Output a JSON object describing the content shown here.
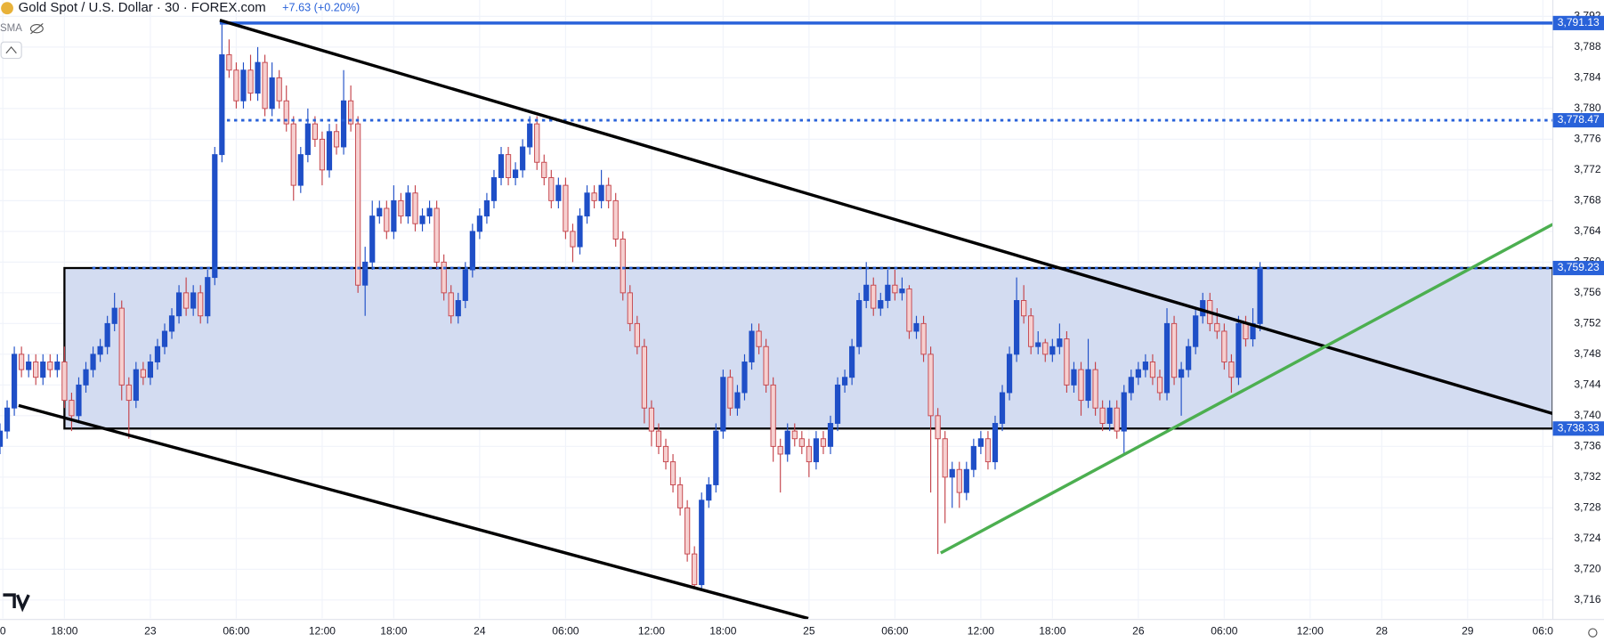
{
  "chart_data": {
    "type": "candlestick",
    "title": "Gold Spot / U.S. Dollar · 30 · FOREX.com",
    "change": "+7.63 (+0.20%)",
    "indicator": "SMA",
    "up_color": "#1f4fc7",
    "down_color": "#c4434a",
    "down_fill": "#f6d0d0",
    "xlim": [
      0,
      216.9
    ],
    "ylim": [
      3713.6,
      3794.13
    ],
    "xticks": [
      {
        "value": 0.4,
        "label": "0"
      },
      {
        "value": 9,
        "label": "18:00"
      },
      {
        "value": 21,
        "label": "23"
      },
      {
        "value": 33,
        "label": "06:00"
      },
      {
        "value": 45,
        "label": "12:00"
      },
      {
        "value": 55,
        "label": "18:00"
      },
      {
        "value": 67,
        "label": "24"
      },
      {
        "value": 79,
        "label": "06:00"
      },
      {
        "value": 91,
        "label": "12:00"
      },
      {
        "value": 101,
        "label": "18:00"
      },
      {
        "value": 113,
        "label": "25"
      },
      {
        "value": 125,
        "label": "06:00"
      },
      {
        "value": 137,
        "label": "12:00"
      },
      {
        "value": 147,
        "label": "18:00"
      },
      {
        "value": 159,
        "label": "26"
      },
      {
        "value": 171,
        "label": "06:00"
      },
      {
        "value": 183,
        "label": "12:00"
      },
      {
        "value": 193,
        "label": "28"
      },
      {
        "value": 205,
        "label": "29"
      },
      {
        "value": 215.5,
        "label": "06:0"
      }
    ],
    "yticks": [
      {
        "value": 3716,
        "label": "3,716"
      },
      {
        "value": 3720,
        "label": "3,720"
      },
      {
        "value": 3724,
        "label": "3,724"
      },
      {
        "value": 3728,
        "label": "3,728"
      },
      {
        "value": 3732,
        "label": "3,732"
      },
      {
        "value": 3736,
        "label": "3,736"
      },
      {
        "value": 3740,
        "label": "3,740"
      },
      {
        "value": 3744,
        "label": "3,744"
      },
      {
        "value": 3748,
        "label": "3,748"
      },
      {
        "value": 3752,
        "label": "3,752"
      },
      {
        "value": 3756,
        "label": "3,756"
      },
      {
        "value": 3760,
        "label": "3,760"
      },
      {
        "value": 3764,
        "label": "3,764"
      },
      {
        "value": 3768,
        "label": "3,768"
      },
      {
        "value": 3772,
        "label": "3,772"
      },
      {
        "value": 3776,
        "label": "3,776"
      },
      {
        "value": 3780,
        "label": "3,780"
      },
      {
        "value": 3784,
        "label": "3,784"
      },
      {
        "value": 3788,
        "label": "3,788"
      },
      {
        "value": 3792,
        "label": "3,792"
      }
    ],
    "levels": [
      {
        "value": 3791.13,
        "label": "3,791.13",
        "line": "solid",
        "start": 30.7,
        "color": "#2962d9"
      },
      {
        "value": 3778.47,
        "label": "3,778.47",
        "line": "dotted",
        "start": 31.7,
        "color": "#2962d9"
      },
      {
        "value": 3759.23,
        "label": "3,759.23",
        "line": "dotted",
        "start": 12.9,
        "color": "#2962d9"
      },
      {
        "value": 3738.33,
        "label": "3,738.33",
        "line": "none",
        "start": 9,
        "color": "#2962d9"
      }
    ],
    "box": {
      "start": 9,
      "fill": "#d3dcf1",
      "stroke": "#000000"
    },
    "trendlines": [
      {
        "color": "#000000",
        "points": [
          [
            30.7,
            3791.5
          ],
          [
            216.9,
            3740.27
          ]
        ]
      },
      {
        "color": "#000000",
        "points": [
          [
            2.6,
            3741.33
          ],
          [
            112.9,
            3713.6
          ]
        ]
      },
      {
        "color": "#4caf50",
        "points": [
          [
            131.4,
            3722.13
          ],
          [
            216.9,
            3764.93
          ]
        ]
      }
    ],
    "candles": [
      [
        3736,
        3739,
        3735,
        3738
      ],
      [
        3738,
        3742,
        3737,
        3741
      ],
      [
        3741,
        3749,
        3740,
        3748
      ],
      [
        3748,
        3749,
        3745,
        3746
      ],
      [
        3746,
        3748,
        3745,
        3747
      ],
      [
        3747,
        3748,
        3744,
        3745
      ],
      [
        3745,
        3748,
        3744,
        3747
      ],
      [
        3747,
        3748,
        3745,
        3746
      ],
      [
        3746,
        3748,
        3745,
        3747
      ],
      [
        3747,
        3749,
        3741,
        3742
      ],
      [
        3742,
        3743,
        3738,
        3740
      ],
      [
        3740,
        3745,
        3739,
        3744
      ],
      [
        3744,
        3747,
        3743,
        3746
      ],
      [
        3746,
        3749,
        3745,
        3748
      ],
      [
        3748,
        3750,
        3747,
        3749
      ],
      [
        3749,
        3753,
        3748,
        3752
      ],
      [
        3752,
        3756,
        3751,
        3754
      ],
      [
        3754,
        3755,
        3742,
        3744
      ],
      [
        3744,
        3745,
        3737,
        3742
      ],
      [
        3742,
        3747,
        3741,
        3746
      ],
      [
        3746,
        3747,
        3744,
        3745
      ],
      [
        3745,
        3748,
        3744,
        3747
      ],
      [
        3747,
        3750,
        3746,
        3749
      ],
      [
        3749,
        3752,
        3748,
        3751
      ],
      [
        3751,
        3754,
        3750,
        3753
      ],
      [
        3753,
        3757,
        3752,
        3756
      ],
      [
        3756,
        3758,
        3753,
        3754
      ],
      [
        3754,
        3757,
        3753,
        3756
      ],
      [
        3756,
        3757,
        3752,
        3753
      ],
      [
        3753,
        3759,
        3752,
        3758
      ],
      [
        3758,
        3775,
        3757,
        3774
      ],
      [
        3774,
        3791.13,
        3773,
        3787
      ],
      [
        3787,
        3789,
        3784,
        3785
      ],
      [
        3785,
        3786,
        3780,
        3781
      ],
      [
        3781,
        3786,
        3780,
        3785
      ],
      [
        3785,
        3787,
        3781,
        3782
      ],
      [
        3782,
        3788,
        3781,
        3786
      ],
      [
        3786,
        3787,
        3779,
        3780
      ],
      [
        3780,
        3786,
        3779,
        3784
      ],
      [
        3784,
        3785,
        3780,
        3781
      ],
      [
        3781,
        3783,
        3777,
        3778
      ],
      [
        3778,
        3779,
        3768,
        3770
      ],
      [
        3770,
        3775,
        3769,
        3774
      ],
      [
        3774,
        3780,
        3773,
        3778
      ],
      [
        3778,
        3779,
        3775,
        3776
      ],
      [
        3776,
        3777,
        3770,
        3772
      ],
      [
        3772,
        3778,
        3771,
        3777
      ],
      [
        3777,
        3778,
        3774,
        3775
      ],
      [
        3775,
        3785,
        3774,
        3781
      ],
      [
        3781,
        3783,
        3777,
        3778
      ],
      [
        3778,
        3779,
        3756,
        3757
      ],
      [
        3757,
        3762,
        3753,
        3760
      ],
      [
        3760,
        3768,
        3759,
        3766
      ],
      [
        3766,
        3768,
        3765,
        3767
      ],
      [
        3767,
        3768,
        3763,
        3764
      ],
      [
        3764,
        3770,
        3763,
        3768
      ],
      [
        3768,
        3769,
        3765,
        3766
      ],
      [
        3766,
        3770,
        3765,
        3769
      ],
      [
        3769,
        3770,
        3764,
        3765
      ],
      [
        3765,
        3767,
        3764,
        3766
      ],
      [
        3766,
        3768,
        3765,
        3767
      ],
      [
        3767,
        3768,
        3759,
        3760
      ],
      [
        3760,
        3761,
        3755,
        3756
      ],
      [
        3756,
        3757,
        3752,
        3753
      ],
      [
        3753,
        3756,
        3752,
        3755
      ],
      [
        3755,
        3760,
        3754,
        3759
      ],
      [
        3759,
        3765,
        3758,
        3764
      ],
      [
        3764,
        3767,
        3763,
        3766
      ],
      [
        3766,
        3769,
        3765,
        3768
      ],
      [
        3768,
        3772,
        3767,
        3771
      ],
      [
        3771,
        3775,
        3770,
        3774
      ],
      [
        3774,
        3775,
        3770,
        3771
      ],
      [
        3771,
        3773,
        3770,
        3772
      ],
      [
        3772,
        3776,
        3771,
        3775
      ],
      [
        3775,
        3779,
        3774,
        3778
      ],
      [
        3778,
        3779,
        3772,
        3773
      ],
      [
        3773,
        3774,
        3770,
        3771
      ],
      [
        3771,
        3772,
        3767,
        3768
      ],
      [
        3768,
        3771,
        3767,
        3770
      ],
      [
        3770,
        3771,
        3763,
        3764
      ],
      [
        3764,
        3765,
        3760,
        3762
      ],
      [
        3762,
        3767,
        3761,
        3766
      ],
      [
        3766,
        3770,
        3765,
        3769
      ],
      [
        3769,
        3770,
        3767,
        3768
      ],
      [
        3768,
        3772,
        3767,
        3770
      ],
      [
        3770,
        3771,
        3767,
        3768
      ],
      [
        3768,
        3769,
        3762,
        3763
      ],
      [
        3763,
        3764,
        3755,
        3756
      ],
      [
        3756,
        3757,
        3751,
        3752
      ],
      [
        3752,
        3753,
        3748,
        3749
      ],
      [
        3749,
        3750,
        3739,
        3741
      ],
      [
        3741,
        3742,
        3736,
        3738
      ],
      [
        3738,
        3739,
        3735,
        3736
      ],
      [
        3736,
        3737,
        3733,
        3734
      ],
      [
        3734,
        3735,
        3730,
        3731
      ],
      [
        3731,
        3732,
        3727,
        3728
      ],
      [
        3728,
        3729,
        3721,
        3722
      ],
      [
        3722,
        3723,
        3717.5,
        3718
      ],
      [
        3718,
        3730,
        3717.5,
        3729
      ],
      [
        3729,
        3732,
        3728,
        3731
      ],
      [
        3731,
        3739,
        3730,
        3738
      ],
      [
        3738,
        3746,
        3737,
        3745
      ],
      [
        3745,
        3746,
        3740,
        3741
      ],
      [
        3741,
        3744,
        3740,
        3743
      ],
      [
        3743,
        3748,
        3742,
        3747
      ],
      [
        3747,
        3752,
        3746,
        3751
      ],
      [
        3751,
        3752,
        3748,
        3749
      ],
      [
        3749,
        3750,
        3743,
        3744
      ],
      [
        3744,
        3745,
        3734,
        3736
      ],
      [
        3736,
        3737,
        3730,
        3735
      ],
      [
        3735,
        3739,
        3734,
        3738
      ],
      [
        3738,
        3739,
        3736,
        3737
      ],
      [
        3737,
        3738,
        3735,
        3736
      ],
      [
        3736,
        3737,
        3732,
        3734
      ],
      [
        3734,
        3738,
        3733,
        3737
      ],
      [
        3737,
        3738,
        3735,
        3736
      ],
      [
        3736,
        3740,
        3735,
        3739
      ],
      [
        3739,
        3745,
        3738,
        3744
      ],
      [
        3744,
        3746,
        3743,
        3745
      ],
      [
        3745,
        3750,
        3744,
        3749
      ],
      [
        3749,
        3756,
        3748,
        3755
      ],
      [
        3755,
        3760,
        3754,
        3757
      ],
      [
        3757,
        3758,
        3753,
        3754
      ],
      [
        3754,
        3756,
        3753,
        3755
      ],
      [
        3755,
        3759,
        3754,
        3757
      ],
      [
        3757,
        3759,
        3755,
        3756
      ],
      [
        3756,
        3758,
        3755,
        3756.5
      ],
      [
        3756.5,
        3757,
        3750,
        3751
      ],
      [
        3751,
        3753,
        3750,
        3752
      ],
      [
        3752,
        3753,
        3747,
        3748
      ],
      [
        3748,
        3749,
        3730,
        3740
      ],
      [
        3740,
        3741,
        3722,
        3737
      ],
      [
        3737,
        3738,
        3726,
        3732
      ],
      [
        3732,
        3734,
        3728,
        3733
      ],
      [
        3733,
        3734,
        3728,
        3730
      ],
      [
        3730,
        3734,
        3729,
        3733
      ],
      [
        3733,
        3737,
        3732,
        3736
      ],
      [
        3736,
        3738,
        3735,
        3737
      ],
      [
        3737,
        3738,
        3733,
        3734
      ],
      [
        3734,
        3740,
        3733,
        3739
      ],
      [
        3739,
        3744,
        3738,
        3743
      ],
      [
        3743,
        3749,
        3742,
        3748
      ],
      [
        3748,
        3758,
        3747,
        3755
      ],
      [
        3755,
        3757,
        3752,
        3753
      ],
      [
        3753,
        3754,
        3748,
        3749
      ],
      [
        3749,
        3751,
        3748,
        3749.5
      ],
      [
        3749.5,
        3750,
        3747,
        3748
      ],
      [
        3748,
        3750,
        3747,
        3749
      ],
      [
        3749,
        3752,
        3748,
        3750
      ],
      [
        3750,
        3751,
        3743,
        3744
      ],
      [
        3744,
        3747,
        3743,
        3746
      ],
      [
        3746,
        3747,
        3740,
        3742
      ],
      [
        3742,
        3750,
        3741,
        3746
      ],
      [
        3746,
        3747,
        3740,
        3741
      ],
      [
        3741,
        3742,
        3738,
        3739
      ],
      [
        3739,
        3742,
        3738,
        3741
      ],
      [
        3741,
        3742,
        3737,
        3738
      ],
      [
        3738,
        3744,
        3735,
        3743
      ],
      [
        3743,
        3746,
        3742,
        3745
      ],
      [
        3745,
        3747,
        3744,
        3746
      ],
      [
        3746,
        3748,
        3745,
        3747
      ],
      [
        3747,
        3748,
        3744,
        3745
      ],
      [
        3745,
        3746,
        3742,
        3743
      ],
      [
        3743,
        3754,
        3742,
        3752
      ],
      [
        3752,
        3753,
        3744,
        3745
      ],
      [
        3745,
        3747,
        3740,
        3746
      ],
      [
        3746,
        3750,
        3745,
        3749
      ],
      [
        3749,
        3754,
        3748,
        3753
      ],
      [
        3753,
        3756,
        3752,
        3755
      ],
      [
        3755,
        3756,
        3751,
        3752
      ],
      [
        3752,
        3754,
        3750,
        3751
      ],
      [
        3751,
        3752,
        3746,
        3747
      ],
      [
        3747,
        3748,
        3743,
        3745
      ],
      [
        3745,
        3753,
        3744,
        3752
      ],
      [
        3752,
        3753,
        3749,
        3750
      ],
      [
        3750,
        3754,
        3749,
        3752
      ],
      [
        3752,
        3760,
        3751,
        3759.23
      ]
    ]
  }
}
